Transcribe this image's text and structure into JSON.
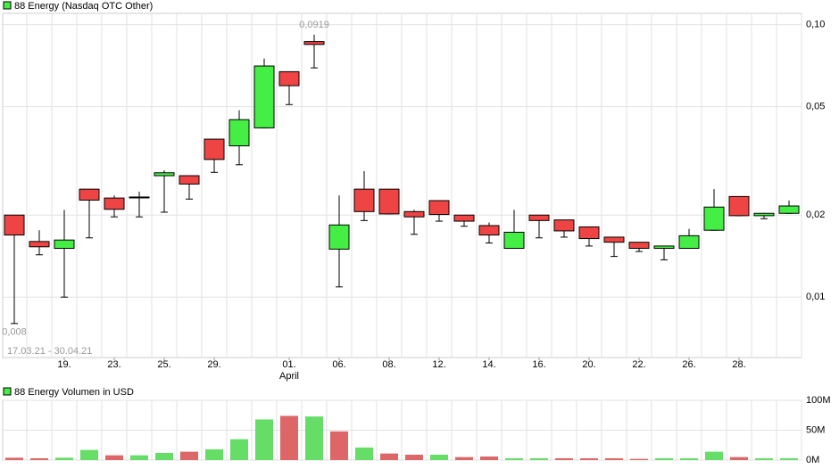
{
  "chart_data": [
    {
      "type": "candlestick",
      "title": "88 Energy (Nasdaq OTC Other)",
      "legend_color": "#44ee44",
      "date_range": "17.03.21 - 30.04.21",
      "month_label": "April",
      "categories": [
        null,
        null,
        "19.",
        null,
        "23.",
        null,
        "25.",
        null,
        "29.",
        null,
        null,
        "01.",
        null,
        "06.",
        null,
        "08.",
        null,
        "12.",
        null,
        "14.",
        null,
        "16.",
        null,
        "20.",
        null,
        "22.",
        null,
        "26.",
        null,
        "28.",
        null,
        null
      ],
      "open": [
        0.02,
        0.016,
        0.0151,
        0.0249,
        0.0231,
        0.0233,
        0.0279,
        0.0279,
        0.038,
        0.0359,
        0.0418,
        0.0672,
        0.0867,
        0.015,
        0.0249,
        0.0249,
        0.0206,
        0.0226,
        0.02,
        0.0183,
        0.0151,
        0.02,
        0.0192,
        0.0181,
        0.0166,
        0.0159,
        0.0151,
        0.0151,
        0.0176,
        0.0234,
        0.0199,
        0.0203
      ],
      "high": [
        0.02,
        0.0176,
        0.0209,
        0.0249,
        0.0236,
        0.0244,
        0.0292,
        0.0279,
        0.038,
        0.0485,
        0.0751,
        0.0672,
        0.0919,
        0.0236,
        0.029,
        0.0249,
        0.0209,
        0.0226,
        0.02,
        0.0188,
        0.0209,
        0.02,
        0.0192,
        0.0181,
        0.0166,
        0.0159,
        0.0154,
        0.0178,
        0.0249,
        0.0234,
        0.0204,
        0.0226
      ],
      "low": [
        0.008,
        0.0143,
        0.01,
        0.0165,
        0.0197,
        0.0197,
        0.0205,
        0.0229,
        0.0287,
        0.0306,
        0.0418,
        0.0509,
        0.0694,
        0.0109,
        0.0191,
        0.0202,
        0.017,
        0.019,
        0.0182,
        0.0158,
        0.0151,
        0.0165,
        0.0166,
        0.0154,
        0.0141,
        0.0147,
        0.0137,
        0.0151,
        0.0176,
        0.0199,
        0.0194,
        0.0203
      ],
      "close": [
        0.0169,
        0.0153,
        0.0162,
        0.0227,
        0.021,
        0.0233,
        0.0286,
        0.026,
        0.032,
        0.0448,
        0.0705,
        0.0597,
        0.0846,
        0.0184,
        0.0206,
        0.0202,
        0.0197,
        0.0201,
        0.019,
        0.0169,
        0.0173,
        0.0191,
        0.0175,
        0.0164,
        0.0159,
        0.0151,
        0.0154,
        0.0168,
        0.0214,
        0.0199,
        0.0203,
        0.0216
      ],
      "up_color": "#44ee44",
      "down_color": "#ee4444",
      "annotations": [
        {
          "value": 0.0919,
          "label": "0,0919"
        },
        {
          "value": 0.008,
          "label": "0,008"
        }
      ],
      "log_scale": true,
      "ylim": [
        0.006,
        0.11
      ],
      "yticks": [
        {
          "value": 0.01,
          "label": "0,01"
        },
        {
          "value": 0.02,
          "label": "0,02"
        },
        {
          "value": 0.05,
          "label": "0,05"
        },
        {
          "value": 0.1,
          "label": "0,10"
        }
      ],
      "grid": true
    },
    {
      "type": "bar",
      "title": "88 Energy Volumen in USD",
      "legend_color": "#44ee44",
      "values": [
        4000000,
        3000000,
        4000000,
        17000000,
        8000000,
        8000000,
        12000000,
        14000000,
        18000000,
        35000000,
        68000000,
        74000000,
        73000000,
        48000000,
        21000000,
        11000000,
        9000000,
        9000000,
        5000000,
        6000000,
        3000000,
        3000000,
        3000000,
        3000000,
        3000000,
        2000000,
        3000000,
        3000000,
        14000000,
        5000000,
        3000000,
        3000000
      ],
      "colors": [
        "#dd6666",
        "#dd6666",
        "#66dd66",
        "#66dd66",
        "#dd6666",
        "#66dd66",
        "#66dd66",
        "#dd6666",
        "#66dd66",
        "#66dd66",
        "#66dd66",
        "#dd6666",
        "#66dd66",
        "#dd6666",
        "#66dd66",
        "#dd6666",
        "#dd6666",
        "#66dd66",
        "#dd6666",
        "#dd6666",
        "#66dd66",
        "#66dd66",
        "#dd6666",
        "#dd6666",
        "#dd6666",
        "#dd6666",
        "#66dd66",
        "#66dd66",
        "#66dd66",
        "#dd6666",
        "#66dd66",
        "#66dd66"
      ],
      "ylim": [
        0,
        100000000
      ],
      "yticks": [
        {
          "value": 0,
          "label": "0M"
        },
        {
          "value": 50000000,
          "label": "50M"
        },
        {
          "value": 100000000,
          "label": "100M"
        }
      ],
      "grid": true
    }
  ]
}
